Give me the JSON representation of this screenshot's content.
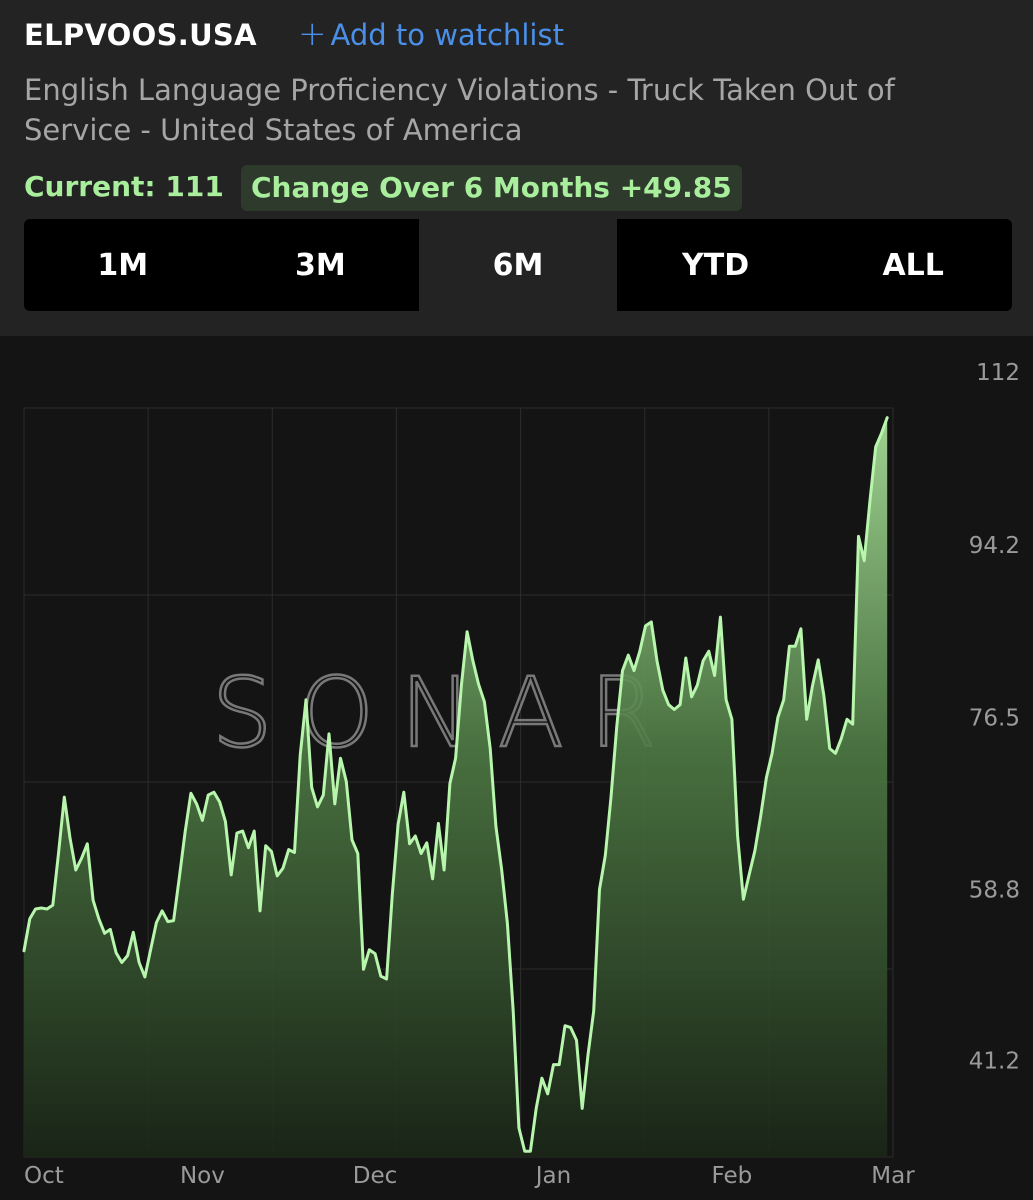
{
  "header": {
    "ticker": "ELPVOOS.USA",
    "watchlist_label": "Add to watchlist",
    "subtitle": "English Language Proficiency Violations - Truck Taken Out of Service - United States of America",
    "current": "Current: 111",
    "change": "Change Over 6 Months +49.85"
  },
  "range_tabs": [
    {
      "label": "1M",
      "active": false
    },
    {
      "label": "3M",
      "active": false
    },
    {
      "label": "6M",
      "active": true
    },
    {
      "label": "YTD",
      "active": false
    },
    {
      "label": "ALL",
      "active": false
    }
  ],
  "watermark": "SONAR",
  "colors": {
    "line": "#b8f5ad",
    "accent": "#a8ee9c",
    "link": "#4a8fe8"
  },
  "chart_data": {
    "type": "area",
    "title": "",
    "xlabel": "",
    "ylabel": "",
    "ylim": [
      35,
      112
    ],
    "y_ticks": [
      "112",
      "94.2",
      "76.5",
      "58.8",
      "41.2"
    ],
    "y_tick_values": [
      112,
      94.2,
      76.5,
      58.8,
      41.2
    ],
    "x_ticks": [
      "Oct",
      "Nov",
      "Dec",
      "Jan",
      "Feb",
      "Mar"
    ],
    "x_tick_positions": [
      0,
      31,
      61,
      92,
      123,
      151
    ],
    "x_range": [
      0,
      151
    ],
    "grid": true,
    "series": [
      {
        "x": [
          0,
          1,
          2,
          3,
          4,
          5,
          6,
          7,
          8,
          9,
          10,
          11,
          12,
          13,
          14,
          15,
          16,
          17,
          18,
          19,
          20,
          21,
          22,
          23,
          24,
          25,
          26,
          27,
          28,
          29,
          30,
          31,
          32,
          33,
          34,
          35,
          36,
          37,
          38,
          39,
          40,
          41,
          42,
          43,
          44,
          45,
          46,
          47,
          48,
          49,
          50,
          51,
          52,
          53,
          54,
          55,
          56,
          57,
          58,
          59,
          60,
          61,
          62,
          63,
          64,
          65,
          66,
          67,
          68,
          69,
          70,
          71,
          72,
          73,
          74,
          75,
          76,
          77,
          78,
          79,
          80,
          81,
          82,
          83,
          84,
          85,
          86,
          87,
          88,
          89,
          90,
          91,
          92,
          93,
          94,
          95,
          96,
          97,
          98,
          99,
          100,
          101,
          102,
          103,
          104,
          105,
          106,
          107,
          108,
          109,
          110,
          111,
          112,
          113,
          114,
          115,
          116,
          117,
          118,
          119,
          120,
          121,
          122,
          123,
          124,
          125,
          126,
          127,
          128,
          129,
          130,
          131,
          132,
          133,
          134,
          135,
          136,
          137,
          138,
          139,
          140,
          141,
          142,
          143,
          144,
          145,
          146,
          147,
          148,
          149,
          150
        ],
        "values": [
          56.2,
          59.5,
          60.5,
          60.6,
          60.5,
          60.9,
          66.2,
          72.0,
          67.8,
          64.5,
          65.7,
          67.2,
          61.4,
          59.5,
          58.0,
          58.4,
          56.0,
          55.0,
          55.7,
          58.1,
          55.0,
          53.5,
          56.3,
          59.1,
          60.3,
          59.2,
          59.3,
          63.8,
          68.4,
          72.4,
          71.3,
          69.6,
          72.2,
          72.5,
          71.5,
          69.5,
          64.0,
          68.3,
          68.5,
          66.8,
          68.5,
          60.3,
          67.0,
          66.4,
          63.9,
          64.7,
          66.6,
          66.3,
          76.3,
          82.0,
          73.0,
          71.0,
          72.2,
          78.5,
          71.3,
          76.0,
          73.6,
          67.6,
          66.2,
          54.3,
          56.3,
          55.9,
          53.6,
          53.3,
          62.0,
          69.2,
          72.5,
          67.2,
          68.0,
          66.2,
          67.3,
          63.6,
          69.3,
          64.5,
          73.4,
          76.0,
          83.5,
          89.0,
          86.0,
          83.6,
          81.8,
          77.0,
          69.0,
          64.5,
          59.0,
          50.0,
          38.0,
          35.6,
          35.6,
          40.0,
          43.1,
          41.5,
          44.5,
          44.5,
          48.5,
          48.3,
          47.0,
          40.0,
          45.5,
          50.0,
          62.5,
          66.0,
          72.0,
          79.3,
          85.0,
          86.6,
          85.0,
          87.0,
          89.6,
          90.0,
          86.0,
          83.0,
          81.5,
          81.0,
          81.5,
          86.3,
          82.3,
          83.5,
          86.0,
          87.0,
          84.5,
          90.5,
          82.0,
          80.0,
          68.0,
          61.5,
          64.0,
          66.5,
          70.0,
          74.0,
          76.5,
          80.2,
          82.0,
          87.5,
          87.5,
          89.3,
          80.0,
          83.4,
          86.1,
          82.4,
          77.0,
          76.5,
          78.0,
          80.0,
          79.5,
          98.8,
          96.3,
          102.5,
          108.0,
          109.4,
          111.0
        ]
      }
    ]
  }
}
